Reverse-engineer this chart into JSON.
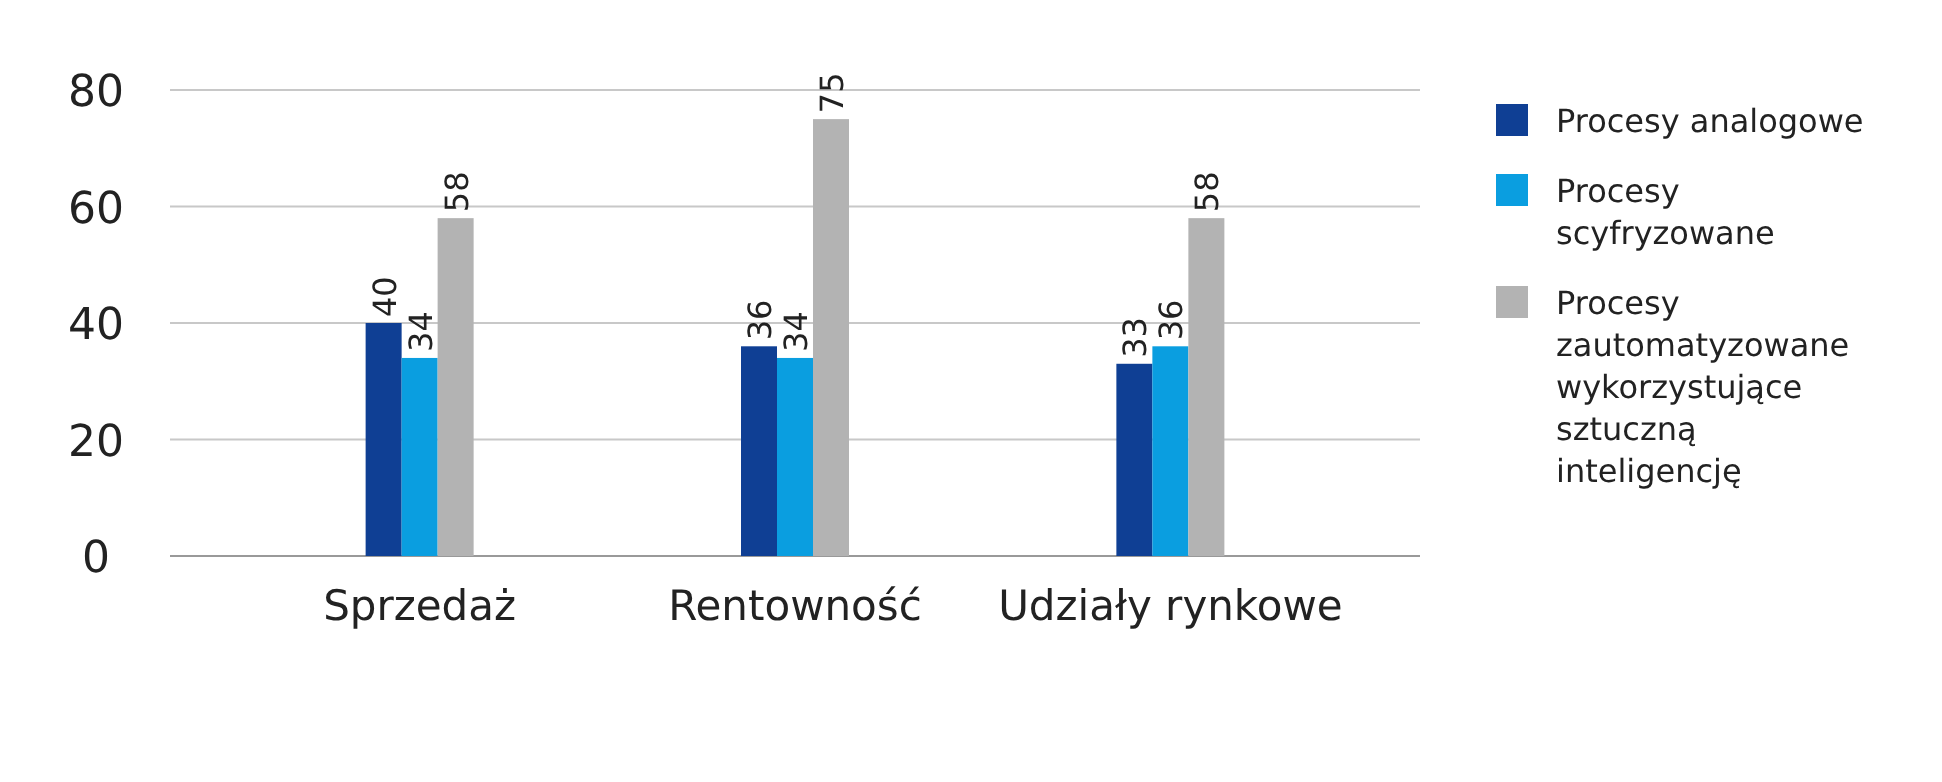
{
  "chart_data": {
    "type": "bar",
    "categories": [
      "Sprzedaż",
      "Rentowność",
      "Udziały rynkowe"
    ],
    "series": [
      {
        "name": "Procesy analogowe",
        "color": "#0f3f94",
        "values": [
          40,
          36,
          33
        ]
      },
      {
        "name": "Procesy scyfryzowane",
        "color": "#0a9ee0",
        "values": [
          34,
          34,
          36
        ]
      },
      {
        "name": "Procesy zautomatyzowane wykorzystujące sztuczną inteligencję",
        "color": "#b3b3b3",
        "values": [
          58,
          75,
          58
        ]
      }
    ],
    "ylim": [
      0,
      80
    ],
    "yticks": [
      0,
      20,
      40,
      60,
      80
    ],
    "grid": "y",
    "legend": "right",
    "data_labels": true
  }
}
